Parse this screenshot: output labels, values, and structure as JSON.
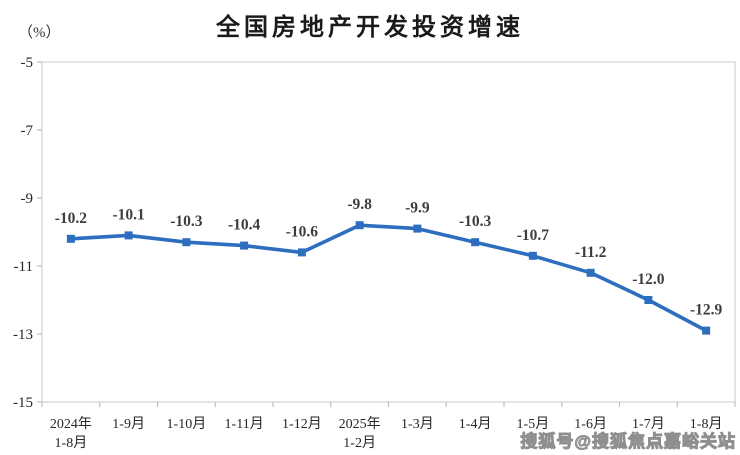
{
  "chart_data": {
    "type": "line",
    "title": "全国房地产开发投资增速",
    "unit": "（%）",
    "categories": [
      "2024年\n1-8月",
      "1-9月",
      "1-10月",
      "1-11月",
      "1-12月",
      "2025年\n1-2月",
      "1-3月",
      "1-4月",
      "1-5月",
      "1-6月",
      "1-7月",
      "1-8月"
    ],
    "values": [
      -10.2,
      -10.1,
      -10.3,
      -10.4,
      -10.6,
      -9.8,
      -9.9,
      -10.3,
      -10.7,
      -11.2,
      -12.0,
      -12.9
    ],
    "data_labels": [
      "-10.2",
      "-10.1",
      "-10.3",
      "-10.4",
      "-10.6",
      "-9.8",
      "-9.9",
      "-10.3",
      "-10.7",
      "-11.2",
      "-12.0",
      "-12.9"
    ],
    "ylim": [
      -15,
      -5
    ],
    "yticks": [
      -5,
      -7,
      -9,
      -11,
      -13,
      -15
    ],
    "xlabel": "",
    "ylabel": "（%）",
    "grid": false,
    "legend_position": "none",
    "marker": "square",
    "colors": {
      "line": "#2D6EBE",
      "marker": "#2D6EBE",
      "data_label_text": "#3d3d3d",
      "axis_border": "#d9d9d9",
      "tick_mark": "#bfbfbf",
      "tick_label_text": "#262626"
    }
  },
  "watermark": {
    "text": "搜狐号@搜狐焦点嘉峪关站"
  }
}
